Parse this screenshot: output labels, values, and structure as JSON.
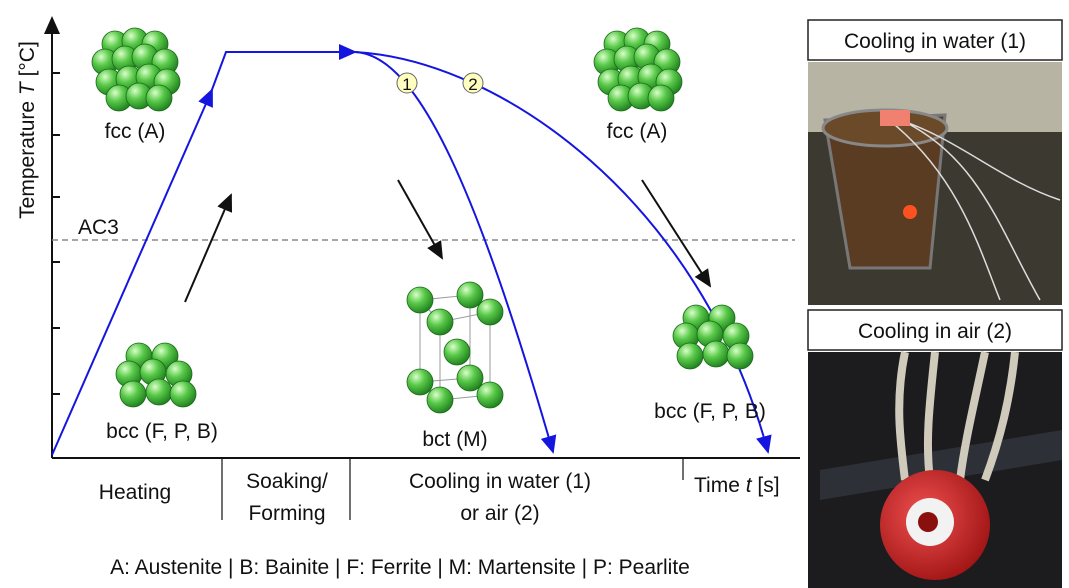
{
  "diagram": {
    "y_axis_label": {
      "text": "Temperature",
      "symbol": "T",
      "unit": "[°C]"
    },
    "x_axis_label": {
      "text": "Time",
      "symbol": "t",
      "unit": "[s]"
    },
    "ac3_label": "AC3",
    "structures": [
      "fcc (A)",
      "bcc (F, P, B)",
      "bct (M)",
      "fcc (A)",
      "bcc (F, P, B)"
    ],
    "path_markers": [
      "1",
      "2"
    ],
    "phases": [
      {
        "lines": [
          "Heating"
        ]
      },
      {
        "lines": [
          "Soaking/",
          "Forming"
        ]
      },
      {
        "lines": [
          "Cooling in water (1)",
          "or air (2)"
        ]
      }
    ],
    "legend": "A: Austenite | B: Bainite | F: Ferrite | M: Martensite | P: Pearlite"
  },
  "photos": [
    {
      "caption": "Cooling in water (1)"
    },
    {
      "caption": "Cooling in air (2)"
    }
  ]
}
